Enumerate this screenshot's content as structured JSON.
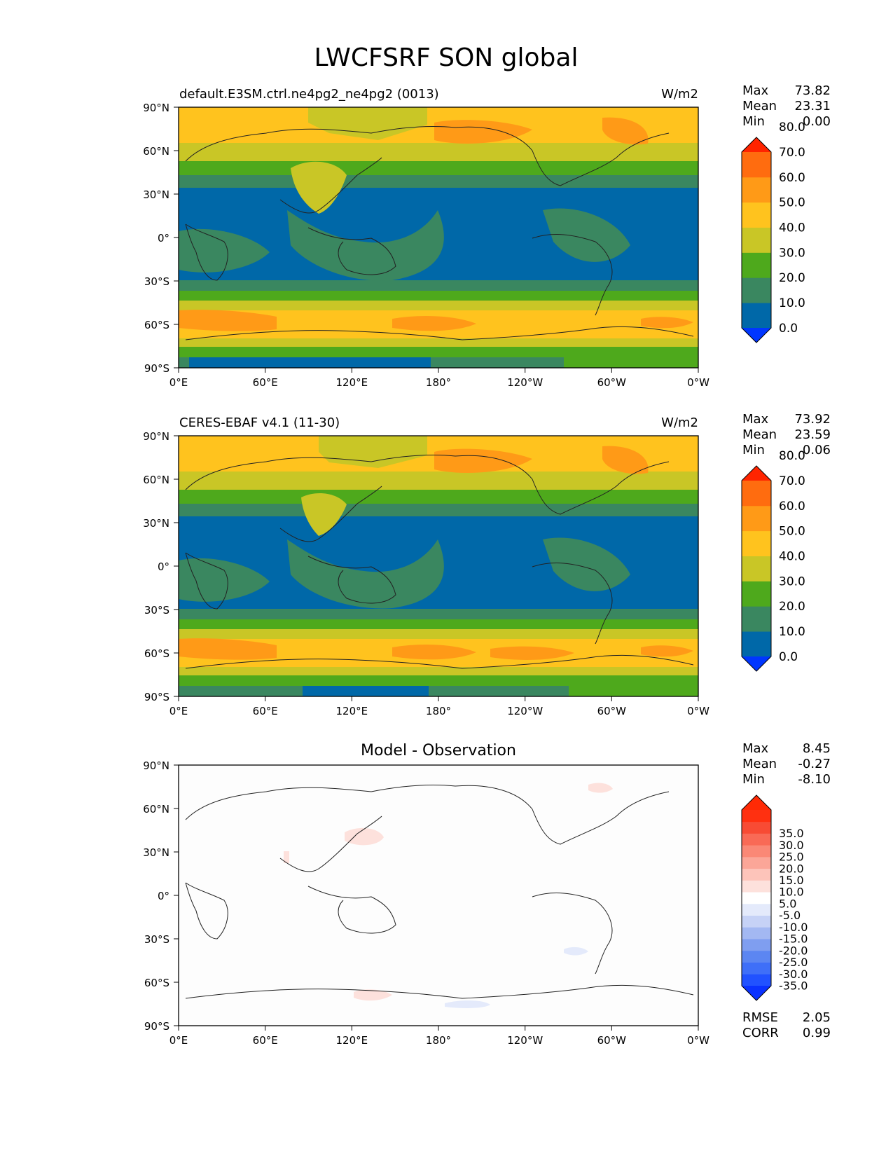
{
  "figure": {
    "title": "LWCFSRF SON global"
  },
  "axes": {
    "y_ticks": [
      "90°N",
      "60°N",
      "30°N",
      "0°",
      "30°S",
      "60°S",
      "90°S"
    ],
    "x_ticks": [
      "0°E",
      "60°E",
      "120°E",
      "180°",
      "120°W",
      "60°W",
      "0°W"
    ]
  },
  "panels": [
    {
      "left_title": "default.E3SM.ctrl.ne4pg2_ne4pg2 (0013)",
      "center_title": "",
      "right_title": "W/m2",
      "stats": [
        {
          "label": "Max",
          "value": "73.82"
        },
        {
          "label": "Mean",
          "value": "23.31"
        },
        {
          "label": "Min",
          "value": "0.00"
        }
      ],
      "extra_stats": [],
      "colorbar": {
        "under_color": "#0036ff",
        "over_color": "#ff2400",
        "colors": [
          "#0068a8",
          "#3a8760",
          "#4ea91c",
          "#c9c626",
          "#ffc31e",
          "#ff9a17",
          "#ff6c0f"
        ],
        "labels": [
          "0.0",
          "10.0",
          "20.0",
          "30.0",
          "40.0",
          "50.0",
          "60.0",
          "70.0",
          "80.0"
        ]
      }
    },
    {
      "left_title": "CERES-EBAF v4.1 (11-30)",
      "center_title": "",
      "right_title": "W/m2",
      "stats": [
        {
          "label": "Max",
          "value": "73.92"
        },
        {
          "label": "Mean",
          "value": "23.59"
        },
        {
          "label": "Min",
          "value": "0.06"
        }
      ],
      "extra_stats": [],
      "colorbar": {
        "under_color": "#0036ff",
        "over_color": "#ff2400",
        "colors": [
          "#0068a8",
          "#3a8760",
          "#4ea91c",
          "#c9c626",
          "#ffc31e",
          "#ff9a17",
          "#ff6c0f"
        ],
        "labels": [
          "0.0",
          "10.0",
          "20.0",
          "30.0",
          "40.0",
          "50.0",
          "60.0",
          "70.0",
          "80.0"
        ]
      }
    },
    {
      "left_title": "",
      "center_title": "Model - Observation",
      "right_title": "",
      "stats": [
        {
          "label": "Max",
          "value": "8.45"
        },
        {
          "label": "Mean",
          "value": "-0.27"
        },
        {
          "label": "Min",
          "value": "-8.10"
        }
      ],
      "extra_stats": [
        {
          "label": "RMSE",
          "value": "2.05"
        },
        {
          "label": "CORR",
          "value": "0.99"
        }
      ],
      "colorbar": {
        "under_color": "#0a32ff",
        "over_color": "#ff2a05",
        "colors": [
          "#2152ff",
          "#3f6ff8",
          "#5c86f2",
          "#7f9ef0",
          "#a3b8f2",
          "#c6d2f6",
          "#e4eafb",
          "#ffffff",
          "#fde1dc",
          "#fdc4ba",
          "#fba698",
          "#fa8876",
          "#f96a56",
          "#f84b34",
          "#ff3010"
        ],
        "labels": [
          "-35.0",
          "-30.0",
          "-25.0",
          "-20.0",
          "-15.0",
          "-10.0",
          "-5.0",
          "5.0",
          "10.0",
          "15.0",
          "20.0",
          "25.0",
          "30.0",
          "35.0"
        ]
      }
    }
  ],
  "chart_data": [
    {
      "type": "heatmap",
      "title": "default.E3SM.ctrl.ne4pg2_ne4pg2 (0013)",
      "units": "W/m2",
      "x_ticks": [
        "0°E",
        "60°E",
        "120°E",
        "180°",
        "120°W",
        "60°W",
        "0°W"
      ],
      "y_ticks": [
        "90°N",
        "60°N",
        "30°N",
        "0°",
        "30°S",
        "60°S",
        "90°S"
      ],
      "xlim": [
        0,
        360
      ],
      "ylim": [
        -90,
        90
      ],
      "levels": [
        0,
        10,
        20,
        30,
        40,
        50,
        60,
        70,
        80
      ],
      "stats": {
        "max": 73.82,
        "mean": 23.31,
        "min": 0.0
      }
    },
    {
      "type": "heatmap",
      "title": "CERES-EBAF v4.1 (11-30)",
      "units": "W/m2",
      "x_ticks": [
        "0°E",
        "60°E",
        "120°E",
        "180°",
        "120°W",
        "60°W",
        "0°W"
      ],
      "y_ticks": [
        "90°N",
        "60°N",
        "30°N",
        "0°",
        "30°S",
        "60°S",
        "90°S"
      ],
      "xlim": [
        0,
        360
      ],
      "ylim": [
        -90,
        90
      ],
      "levels": [
        0,
        10,
        20,
        30,
        40,
        50,
        60,
        70,
        80
      ],
      "stats": {
        "max": 73.92,
        "mean": 23.59,
        "min": 0.06
      }
    },
    {
      "type": "heatmap",
      "title": "Model - Observation",
      "x_ticks": [
        "0°E",
        "60°E",
        "120°E",
        "180°",
        "120°W",
        "60°W",
        "0°W"
      ],
      "y_ticks": [
        "90°N",
        "60°N",
        "30°N",
        "0°",
        "30°S",
        "60°S",
        "90°S"
      ],
      "xlim": [
        0,
        360
      ],
      "ylim": [
        -90,
        90
      ],
      "levels": [
        -35,
        -30,
        -25,
        -20,
        -15,
        -10,
        -5,
        5,
        10,
        15,
        20,
        25,
        30,
        35
      ],
      "stats": {
        "max": 8.45,
        "mean": -0.27,
        "min": -8.1,
        "rmse": 2.05,
        "corr": 0.99
      }
    }
  ]
}
